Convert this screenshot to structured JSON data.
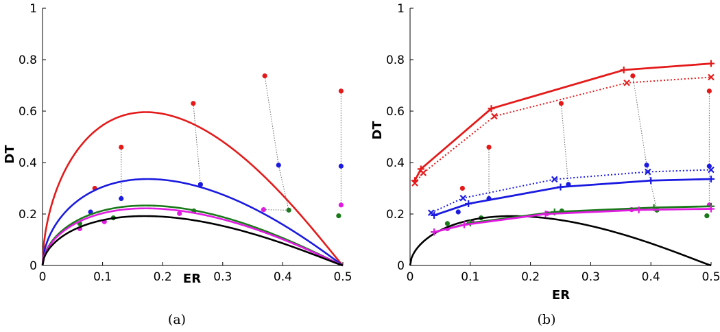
{
  "chart_data": [
    {
      "panel": "a",
      "type": "line",
      "caption": "(a)",
      "xlabel": "ER",
      "ylabel": "DT",
      "xlim": [
        0,
        0.5
      ],
      "ylim": [
        0,
        1
      ],
      "xticks": [
        "0",
        "0.1",
        "0.2",
        "0.3",
        "0.4",
        "0.5"
      ],
      "yticks": [
        "0",
        "0.2",
        "0.4",
        "0.6",
        "0.8",
        "1"
      ],
      "series": [
        {
          "color": "#e41a1a",
          "peak_x": 0.172,
          "peak_y": 0.596,
          "shape": 0.55
        },
        {
          "color": "#1a1ae0",
          "peak_x": 0.175,
          "peak_y": 0.336,
          "shape": 0.55
        },
        {
          "color": "#1a7a1a",
          "peak_x": 0.172,
          "peak_y": 0.233,
          "shape": 0.55
        },
        {
          "color": "#e11ae1",
          "peak_x": 0.172,
          "peak_y": 0.222,
          "shape": 0.55
        },
        {
          "color": "#000000",
          "peak_x": 0.17,
          "peak_y": 0.192,
          "shape": 0.55
        }
      ],
      "points": [
        {
          "color": "#e41a1a",
          "pairs": [
            [
              [
                0.087,
                0.3
              ],
              [
                0.087,
                0.3
              ]
            ],
            [
              [
                0.131,
                0.46
              ],
              [
                0.131,
                0.26
              ]
            ],
            [
              [
                0.251,
                0.63
              ],
              [
                0.263,
                0.315
              ]
            ],
            [
              [
                0.37,
                0.737
              ],
              [
                0.393,
                0.39
              ]
            ],
            [
              [
                0.497,
                0.678
              ],
              [
                0.497,
                0.386
              ]
            ]
          ]
        },
        {
          "color": "#1a1ae0",
          "pairs": [
            [
              [
                0.08,
                0.208
              ],
              [
                0.08,
                0.208
              ]
            ],
            [
              [
                0.131,
                0.26
              ],
              [
                0.131,
                0.26
              ]
            ],
            [
              [
                0.263,
                0.315
              ],
              [
                0.263,
                0.315
              ]
            ],
            [
              [
                0.393,
                0.39
              ],
              [
                0.41,
                0.215
              ]
            ],
            [
              [
                0.497,
                0.386
              ],
              [
                0.497,
                0.235
              ]
            ]
          ]
        },
        {
          "color": "#1a7a1a",
          "pairs": [
            [
              [
                0.062,
                0.163
              ],
              [
                0.062,
                0.163
              ]
            ],
            [
              [
                0.118,
                0.185
              ],
              [
                0.118,
                0.185
              ]
            ],
            [
              [
                0.252,
                0.212
              ],
              [
                0.252,
                0.212
              ]
            ],
            [
              [
                0.41,
                0.215
              ],
              [
                0.41,
                0.215
              ]
            ],
            [
              [
                0.493,
                0.193
              ],
              [
                0.493,
                0.193
              ]
            ]
          ]
        },
        {
          "color": "#e11ae1",
          "pairs": [
            [
              [
                0.062,
                0.143
              ],
              [
                0.062,
                0.143
              ]
            ],
            [
              [
                0.103,
                0.17
              ],
              [
                0.103,
                0.17
              ]
            ],
            [
              [
                0.228,
                0.202
              ],
              [
                0.228,
                0.202
              ]
            ],
            [
              [
                0.368,
                0.217
              ],
              [
                0.41,
                0.215
              ]
            ],
            [
              [
                0.497,
                0.235
              ],
              [
                0.497,
                0.235
              ]
            ]
          ]
        }
      ]
    },
    {
      "panel": "b",
      "type": "line",
      "caption": "(b)",
      "xlabel": "ER",
      "ylabel": "DT",
      "xlim": [
        0,
        0.5
      ],
      "ylim": [
        0,
        1
      ],
      "xticks": [
        "0",
        "0.1",
        "0.2",
        "0.3",
        "0.4",
        "0.5"
      ],
      "yticks": [
        "0",
        "0.2",
        "0.4",
        "0.6",
        "0.8",
        "1"
      ],
      "lines": [
        {
          "color": "#e41a1a",
          "style": "solid",
          "marker": "plus",
          "x": [
            0.008,
            0.018,
            0.135,
            0.355,
            0.5
          ],
          "y": [
            0.33,
            0.375,
            0.61,
            0.76,
            0.785
          ]
        },
        {
          "color": "#e41a1a",
          "style": "dotted",
          "marker": "x",
          "x": [
            0.008,
            0.022,
            0.14,
            0.36,
            0.5
          ],
          "y": [
            0.32,
            0.36,
            0.58,
            0.71,
            0.732
          ]
        },
        {
          "color": "#1a1ae0",
          "style": "solid",
          "marker": "plus",
          "x": [
            0.04,
            0.097,
            0.25,
            0.4,
            0.5
          ],
          "y": [
            0.195,
            0.24,
            0.305,
            0.33,
            0.336
          ]
        },
        {
          "color": "#1a1ae0",
          "style": "dotted",
          "marker": "x",
          "x": [
            0.035,
            0.088,
            0.24,
            0.395,
            0.5
          ],
          "y": [
            0.205,
            0.262,
            0.335,
            0.364,
            0.372
          ]
        },
        {
          "color": "#1a7a1a",
          "style": "solid",
          "marker": "plus",
          "x": [
            0.04,
            0.1,
            0.24,
            0.405,
            0.5
          ],
          "y": [
            0.13,
            0.165,
            0.208,
            0.225,
            0.23
          ]
        },
        {
          "color": "#e11ae1",
          "style": "solid",
          "marker": "plus",
          "x": [
            0.04,
            0.09,
            0.225,
            0.38,
            0.5
          ],
          "y": [
            0.13,
            0.158,
            0.2,
            0.216,
            0.22
          ]
        }
      ],
      "curve": {
        "color": "#000000",
        "peak_x": 0.17,
        "peak_y": 0.192,
        "shape": 0.55
      },
      "points": [
        {
          "color": "#e41a1a",
          "pairs": [
            [
              [
                0.087,
                0.3
              ],
              [
                0.087,
                0.3
              ]
            ],
            [
              [
                0.131,
                0.46
              ],
              [
                0.131,
                0.26
              ]
            ],
            [
              [
                0.251,
                0.63
              ],
              [
                0.263,
                0.315
              ]
            ],
            [
              [
                0.37,
                0.737
              ],
              [
                0.393,
                0.39
              ]
            ],
            [
              [
                0.497,
                0.678
              ],
              [
                0.497,
                0.386
              ]
            ]
          ]
        },
        {
          "color": "#1a1ae0",
          "pairs": [
            [
              [
                0.08,
                0.208
              ],
              [
                0.08,
                0.208
              ]
            ],
            [
              [
                0.131,
                0.26
              ],
              [
                0.131,
                0.26
              ]
            ],
            [
              [
                0.263,
                0.315
              ],
              [
                0.263,
                0.315
              ]
            ],
            [
              [
                0.393,
                0.39
              ],
              [
                0.41,
                0.215
              ]
            ],
            [
              [
                0.497,
                0.386
              ],
              [
                0.497,
                0.235
              ]
            ]
          ]
        },
        {
          "color": "#1a7a1a",
          "pairs": [
            [
              [
                0.062,
                0.163
              ],
              [
                0.062,
                0.163
              ]
            ],
            [
              [
                0.118,
                0.185
              ],
              [
                0.118,
                0.185
              ]
            ],
            [
              [
                0.252,
                0.212
              ],
              [
                0.252,
                0.212
              ]
            ],
            [
              [
                0.41,
                0.215
              ],
              [
                0.41,
                0.215
              ]
            ],
            [
              [
                0.493,
                0.193
              ],
              [
                0.493,
                0.193
              ]
            ]
          ]
        },
        {
          "color": "#e11ae1",
          "pairs": [
            [
              [
                0.062,
                0.143
              ],
              [
                0.062,
                0.143
              ]
            ],
            [
              [
                0.103,
                0.17
              ],
              [
                0.103,
                0.17
              ]
            ],
            [
              [
                0.228,
                0.202
              ],
              [
                0.228,
                0.202
              ]
            ],
            [
              [
                0.368,
                0.217
              ],
              [
                0.41,
                0.215
              ]
            ],
            [
              [
                0.497,
                0.235
              ],
              [
                0.497,
                0.235
              ]
            ]
          ]
        }
      ]
    }
  ]
}
